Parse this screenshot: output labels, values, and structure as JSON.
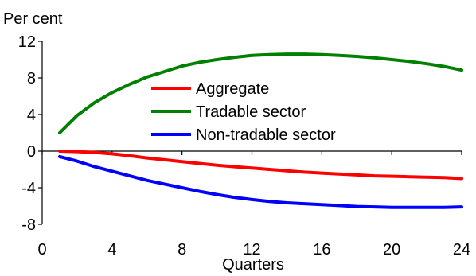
{
  "chart_data": {
    "type": "line",
    "title": "",
    "ylabel": "Per cent",
    "xlabel": "Quarters",
    "xlim": [
      0,
      24
    ],
    "ylim": [
      -8,
      12
    ],
    "x_ticks": [
      0,
      4,
      8,
      12,
      16,
      20,
      24
    ],
    "y_ticks": [
      -8,
      -4,
      0,
      4,
      8,
      12
    ],
    "grid": false,
    "legend_position": "center",
    "series": [
      {
        "name": "Aggregate",
        "color": "#ff0000",
        "x": [
          1,
          2,
          3,
          4,
          5,
          6,
          7,
          8,
          9,
          10,
          11,
          12,
          13,
          14,
          15,
          16,
          17,
          18,
          19,
          20,
          21,
          22,
          23,
          24
        ],
        "values": [
          0.0,
          -0.05,
          -0.15,
          -0.3,
          -0.5,
          -0.75,
          -0.95,
          -1.15,
          -1.35,
          -1.55,
          -1.7,
          -1.85,
          -2.0,
          -2.15,
          -2.3,
          -2.4,
          -2.5,
          -2.6,
          -2.7,
          -2.75,
          -2.8,
          -2.85,
          -2.9,
          -3.0
        ]
      },
      {
        "name": "Tradable sector",
        "color": "#008000",
        "x": [
          1,
          2,
          3,
          4,
          5,
          6,
          7,
          8,
          9,
          10,
          11,
          12,
          13,
          14,
          15,
          16,
          17,
          18,
          19,
          20,
          21,
          22,
          23,
          24
        ],
        "values": [
          2.0,
          3.9,
          5.3,
          6.4,
          7.3,
          8.1,
          8.7,
          9.3,
          9.7,
          10.0,
          10.25,
          10.45,
          10.55,
          10.6,
          10.6,
          10.55,
          10.45,
          10.35,
          10.2,
          10.0,
          9.8,
          9.55,
          9.25,
          8.85
        ]
      },
      {
        "name": "Non-tradable sector",
        "color": "#0000ff",
        "x": [
          1,
          2,
          3,
          4,
          5,
          6,
          7,
          8,
          9,
          10,
          11,
          12,
          13,
          14,
          15,
          16,
          17,
          18,
          19,
          20,
          21,
          22,
          23,
          24
        ],
        "values": [
          -0.6,
          -1.1,
          -1.7,
          -2.2,
          -2.7,
          -3.2,
          -3.6,
          -4.0,
          -4.4,
          -4.75,
          -5.05,
          -5.3,
          -5.5,
          -5.65,
          -5.75,
          -5.85,
          -5.95,
          -6.05,
          -6.1,
          -6.15,
          -6.15,
          -6.15,
          -6.15,
          -6.1
        ]
      }
    ]
  }
}
